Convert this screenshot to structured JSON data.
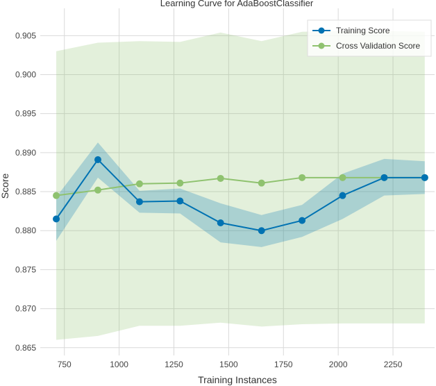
{
  "chart_data": {
    "type": "line",
    "title": "Learning Curve for AdaBoostClassifier",
    "xlabel": "Training Instances",
    "ylabel": "Score",
    "xlim": [
      640,
      2440
    ],
    "ylim": [
      0.864,
      0.9085
    ],
    "x_ticks": [
      750,
      1000,
      1250,
      1500,
      1750,
      2000,
      2250
    ],
    "x_tick_labels": [
      "750",
      "1000",
      "1250",
      "1500",
      "1750",
      "2000",
      "2250"
    ],
    "y_ticks": [
      0.865,
      0.87,
      0.875,
      0.88,
      0.885,
      0.89,
      0.895,
      0.9,
      0.905
    ],
    "y_tick_labels": [
      "0.865",
      "0.870",
      "0.875",
      "0.880",
      "0.885",
      "0.890",
      "0.895",
      "0.900",
      "0.905"
    ],
    "grid": true,
    "legend_position": "top-right",
    "x": [
      713,
      903,
      1093,
      1278,
      1463,
      1650,
      1835,
      2020,
      2210,
      2395
    ],
    "series": [
      {
        "name": "Training Score",
        "color": "#0072B2",
        "values": [
          0.8815,
          0.8891,
          0.8837,
          0.8838,
          0.881,
          0.88,
          0.8813,
          0.8845,
          0.8868,
          0.8868
        ],
        "band_lower": [
          0.8787,
          0.8868,
          0.8823,
          0.8822,
          0.8785,
          0.8779,
          0.8792,
          0.8815,
          0.8845,
          0.8847
        ],
        "band_upper": [
          0.8843,
          0.8913,
          0.8851,
          0.8854,
          0.8835,
          0.882,
          0.8833,
          0.8873,
          0.8892,
          0.8889
        ]
      },
      {
        "name": "Cross Validation Score",
        "color": "#8FC26F",
        "values": [
          0.8845,
          0.8852,
          0.886,
          0.8861,
          0.8867,
          0.8861,
          0.8868,
          0.8868,
          0.8868,
          0.8868
        ],
        "band_lower": [
          0.866,
          0.8665,
          0.8678,
          0.8678,
          0.8682,
          0.8677,
          0.868,
          0.8681,
          0.8681,
          0.8681
        ],
        "band_upper": [
          0.903,
          0.9041,
          0.9043,
          0.9042,
          0.9054,
          0.9043,
          0.9055,
          0.9056,
          0.9056,
          0.9055
        ]
      }
    ]
  }
}
